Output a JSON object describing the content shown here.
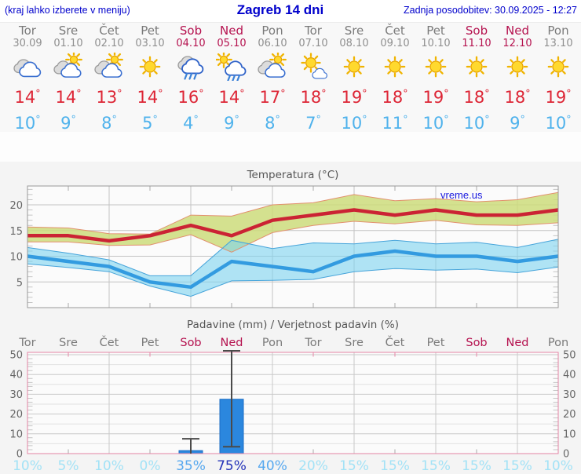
{
  "header": {
    "left_note": "(kraj lahko izberete v meniju)",
    "title": "Zagreb 14 dni",
    "updated": "Zadnja posodobitev: 30.09.2025 - 12:27"
  },
  "colors": {
    "header_text": "#0000cc",
    "weekend": "#b5124f",
    "weekday": "#7a7a7a",
    "temp_max": "#cb2334",
    "temp_min": "#339be0",
    "max_band_fill": "#cddc7b",
    "min_band_fill": "#7dd3f0",
    "bar_blue": "#2b87de",
    "prob_low": "#a3e2f6",
    "prob_mid": "#57a8ef",
    "prob_high": "#2433b8"
  },
  "days": [
    {
      "name": "Tor",
      "date": "30.09",
      "weekend": false,
      "icon": "cloudy",
      "tmax": 14,
      "tmin": 10
    },
    {
      "name": "Sre",
      "date": "01.10",
      "weekend": false,
      "icon": "sun-cloud",
      "tmax": 14,
      "tmin": 9
    },
    {
      "name": "Čet",
      "date": "02.10",
      "weekend": false,
      "icon": "sun-cloud",
      "tmax": 13,
      "tmin": 8
    },
    {
      "name": "Pet",
      "date": "03.10",
      "weekend": false,
      "icon": "sun",
      "tmax": 14,
      "tmin": 5
    },
    {
      "name": "Sob",
      "date": "04.10",
      "weekend": true,
      "icon": "rain",
      "tmax": 16,
      "tmin": 4
    },
    {
      "name": "Ned",
      "date": "05.10",
      "weekend": true,
      "icon": "sun-rain",
      "tmax": 14,
      "tmin": 9
    },
    {
      "name": "Pon",
      "date": "06.10",
      "weekend": false,
      "icon": "sun-cloud",
      "tmax": 17,
      "tmin": 8
    },
    {
      "name": "Tor",
      "date": "07.10",
      "weekend": false,
      "icon": "sun-small-cloud",
      "tmax": 18,
      "tmin": 7
    },
    {
      "name": "Sre",
      "date": "08.10",
      "weekend": false,
      "icon": "sun",
      "tmax": 19,
      "tmin": 10
    },
    {
      "name": "Čet",
      "date": "09.10",
      "weekend": false,
      "icon": "sun",
      "tmax": 18,
      "tmin": 11
    },
    {
      "name": "Pet",
      "date": "10.10",
      "weekend": false,
      "icon": "sun",
      "tmax": 19,
      "tmin": 10
    },
    {
      "name": "Sob",
      "date": "11.10",
      "weekend": true,
      "icon": "sun",
      "tmax": 18,
      "tmin": 10
    },
    {
      "name": "Ned",
      "date": "12.10",
      "weekend": true,
      "icon": "sun",
      "tmax": 18,
      "tmin": 9
    },
    {
      "name": "Pon",
      "date": "13.10",
      "weekend": false,
      "icon": "sun",
      "tmax": 19,
      "tmin": 10
    }
  ],
  "chart_data": [
    {
      "type": "line",
      "title": "Temperatura (°C)",
      "watermark": "vreme.us",
      "categories": [
        "Tor",
        "Sre",
        "Čet",
        "Pet",
        "Sob",
        "Ned",
        "Pon",
        "Tor",
        "Sre",
        "Čet",
        "Pet",
        "Sob",
        "Ned",
        "Pon"
      ],
      "ylim": [
        0,
        23.5
      ],
      "yticks": [
        5,
        10,
        15,
        20
      ],
      "grid": true,
      "legend_position": "none",
      "series": [
        {
          "name": "temp-max",
          "color": "#cb2334",
          "values": [
            14,
            14,
            13,
            14,
            16,
            14,
            17,
            18,
            19,
            18,
            19,
            18,
            18,
            19
          ]
        },
        {
          "name": "temp-min",
          "color": "#339be0",
          "values": [
            10,
            9,
            8,
            5,
            4,
            9,
            8,
            7,
            10,
            11,
            10,
            10,
            9,
            10
          ]
        },
        {
          "name": "temp-max-range",
          "fill": "#cddc7b",
          "edge": "#e2906e",
          "upper": [
            15.7,
            15.5,
            14.4,
            14.3,
            18,
            17.8,
            20,
            20.4,
            22,
            20.8,
            21.2,
            20.6,
            21,
            22.4
          ],
          "lower": [
            12.8,
            12.8,
            12.1,
            12.2,
            14.2,
            10.8,
            14.6,
            16,
            16.8,
            16.3,
            17,
            16.1,
            16,
            16.5
          ]
        },
        {
          "name": "temp-min-range",
          "fill": "#7dd3f0",
          "edge": "#46a4da",
          "upper": [
            11.7,
            10.6,
            9.3,
            6.2,
            6.2,
            13.1,
            11.5,
            12.6,
            12.4,
            13.1,
            12.4,
            12.7,
            11.7,
            13.3
          ],
          "lower": [
            8.5,
            7.8,
            7,
            4.2,
            2.2,
            5.2,
            5.3,
            5.5,
            7,
            7.6,
            7.3,
            7.5,
            6.8,
            7.9
          ]
        }
      ]
    },
    {
      "type": "bar",
      "title": "Padavine (mm) / Verjetnost padavin (%)",
      "categories": [
        "Tor",
        "Sre",
        "Čet",
        "Pet",
        "Sob",
        "Ned",
        "Pon",
        "Tor",
        "Sre",
        "Čet",
        "Pet",
        "Sob",
        "Ned",
        "Pon"
      ],
      "ylim": [
        0,
        51
      ],
      "yticks": [
        0,
        10,
        20,
        30,
        40,
        50
      ],
      "bar_color": "#2b87de",
      "precipitation_mm": [
        0,
        0,
        0,
        0,
        1.5,
        27.5,
        0,
        0,
        0,
        0,
        0,
        0,
        0,
        0
      ],
      "whiskers": {
        "4": [
          0,
          7.5
        ],
        "5": [
          3.5,
          52
        ]
      },
      "probability_pct": [
        10,
        5,
        10,
        0,
        35,
        75,
        40,
        20,
        15,
        15,
        15,
        15,
        15,
        10
      ]
    }
  ]
}
